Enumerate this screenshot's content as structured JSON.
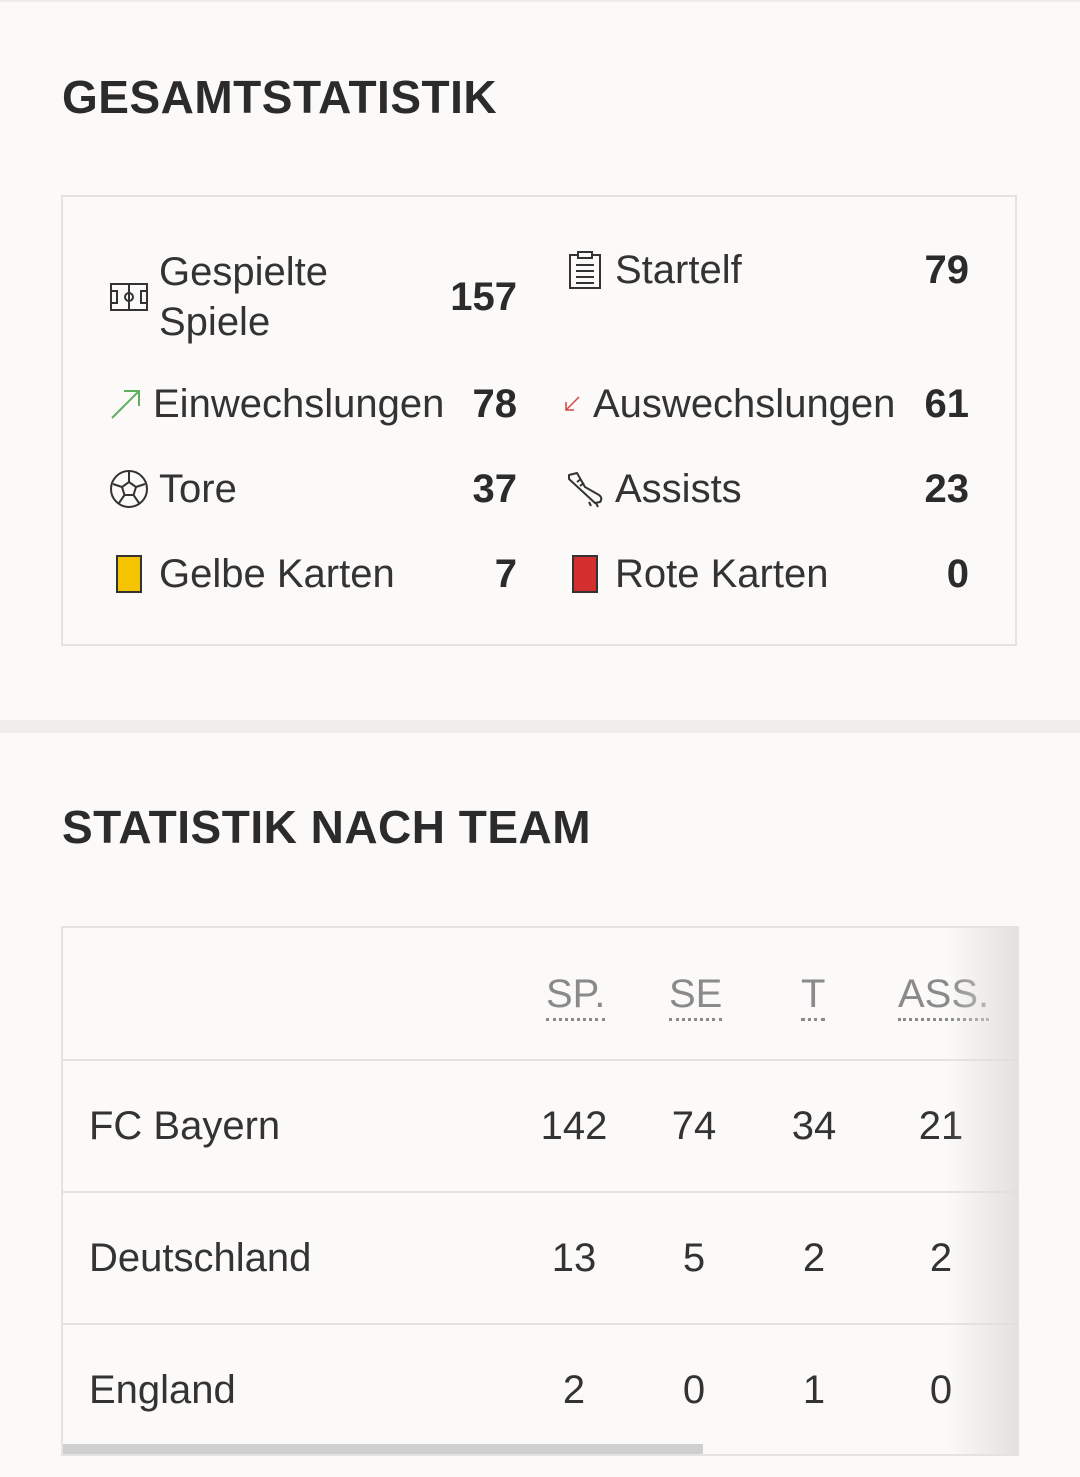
{
  "overall": {
    "title": "GESAMTSTATISTIK",
    "stats": {
      "games": {
        "label": "Gespielte Spiele",
        "value": "157",
        "icon": "pitch-icon"
      },
      "starting": {
        "label": "Startelf",
        "value": "79",
        "icon": "clipboard-icon"
      },
      "sub_in": {
        "label": "Einwechslungen",
        "value": "78",
        "icon": "arrow-up-right-icon",
        "color": "#5fae5a"
      },
      "sub_out": {
        "label": "Auswechslungen",
        "value": "61",
        "icon": "arrow-down-left-icon",
        "color": "#d64545"
      },
      "goals": {
        "label": "Tore",
        "value": "37",
        "icon": "ball-icon"
      },
      "assists": {
        "label": "Assists",
        "value": "23",
        "icon": "boot-icon"
      },
      "yellow": {
        "label": "Gelbe Karten",
        "value": "7",
        "icon": "yellow-card-icon",
        "color": "#f5c400"
      },
      "red": {
        "label": "Rote Karten",
        "value": "0",
        "icon": "red-card-icon",
        "color": "#d32f2f"
      }
    }
  },
  "team": {
    "title": "STATISTIK NACH TEAM",
    "columns": [
      "SP.",
      "SE",
      "T",
      "ASS."
    ],
    "rows": [
      {
        "team": "FC Bayern",
        "values": [
          "142",
          "74",
          "34",
          "21"
        ]
      },
      {
        "team": "Deutschland",
        "values": [
          "13",
          "5",
          "2",
          "2"
        ]
      },
      {
        "team": "England",
        "values": [
          "2",
          "0",
          "1",
          "0"
        ]
      }
    ]
  }
}
